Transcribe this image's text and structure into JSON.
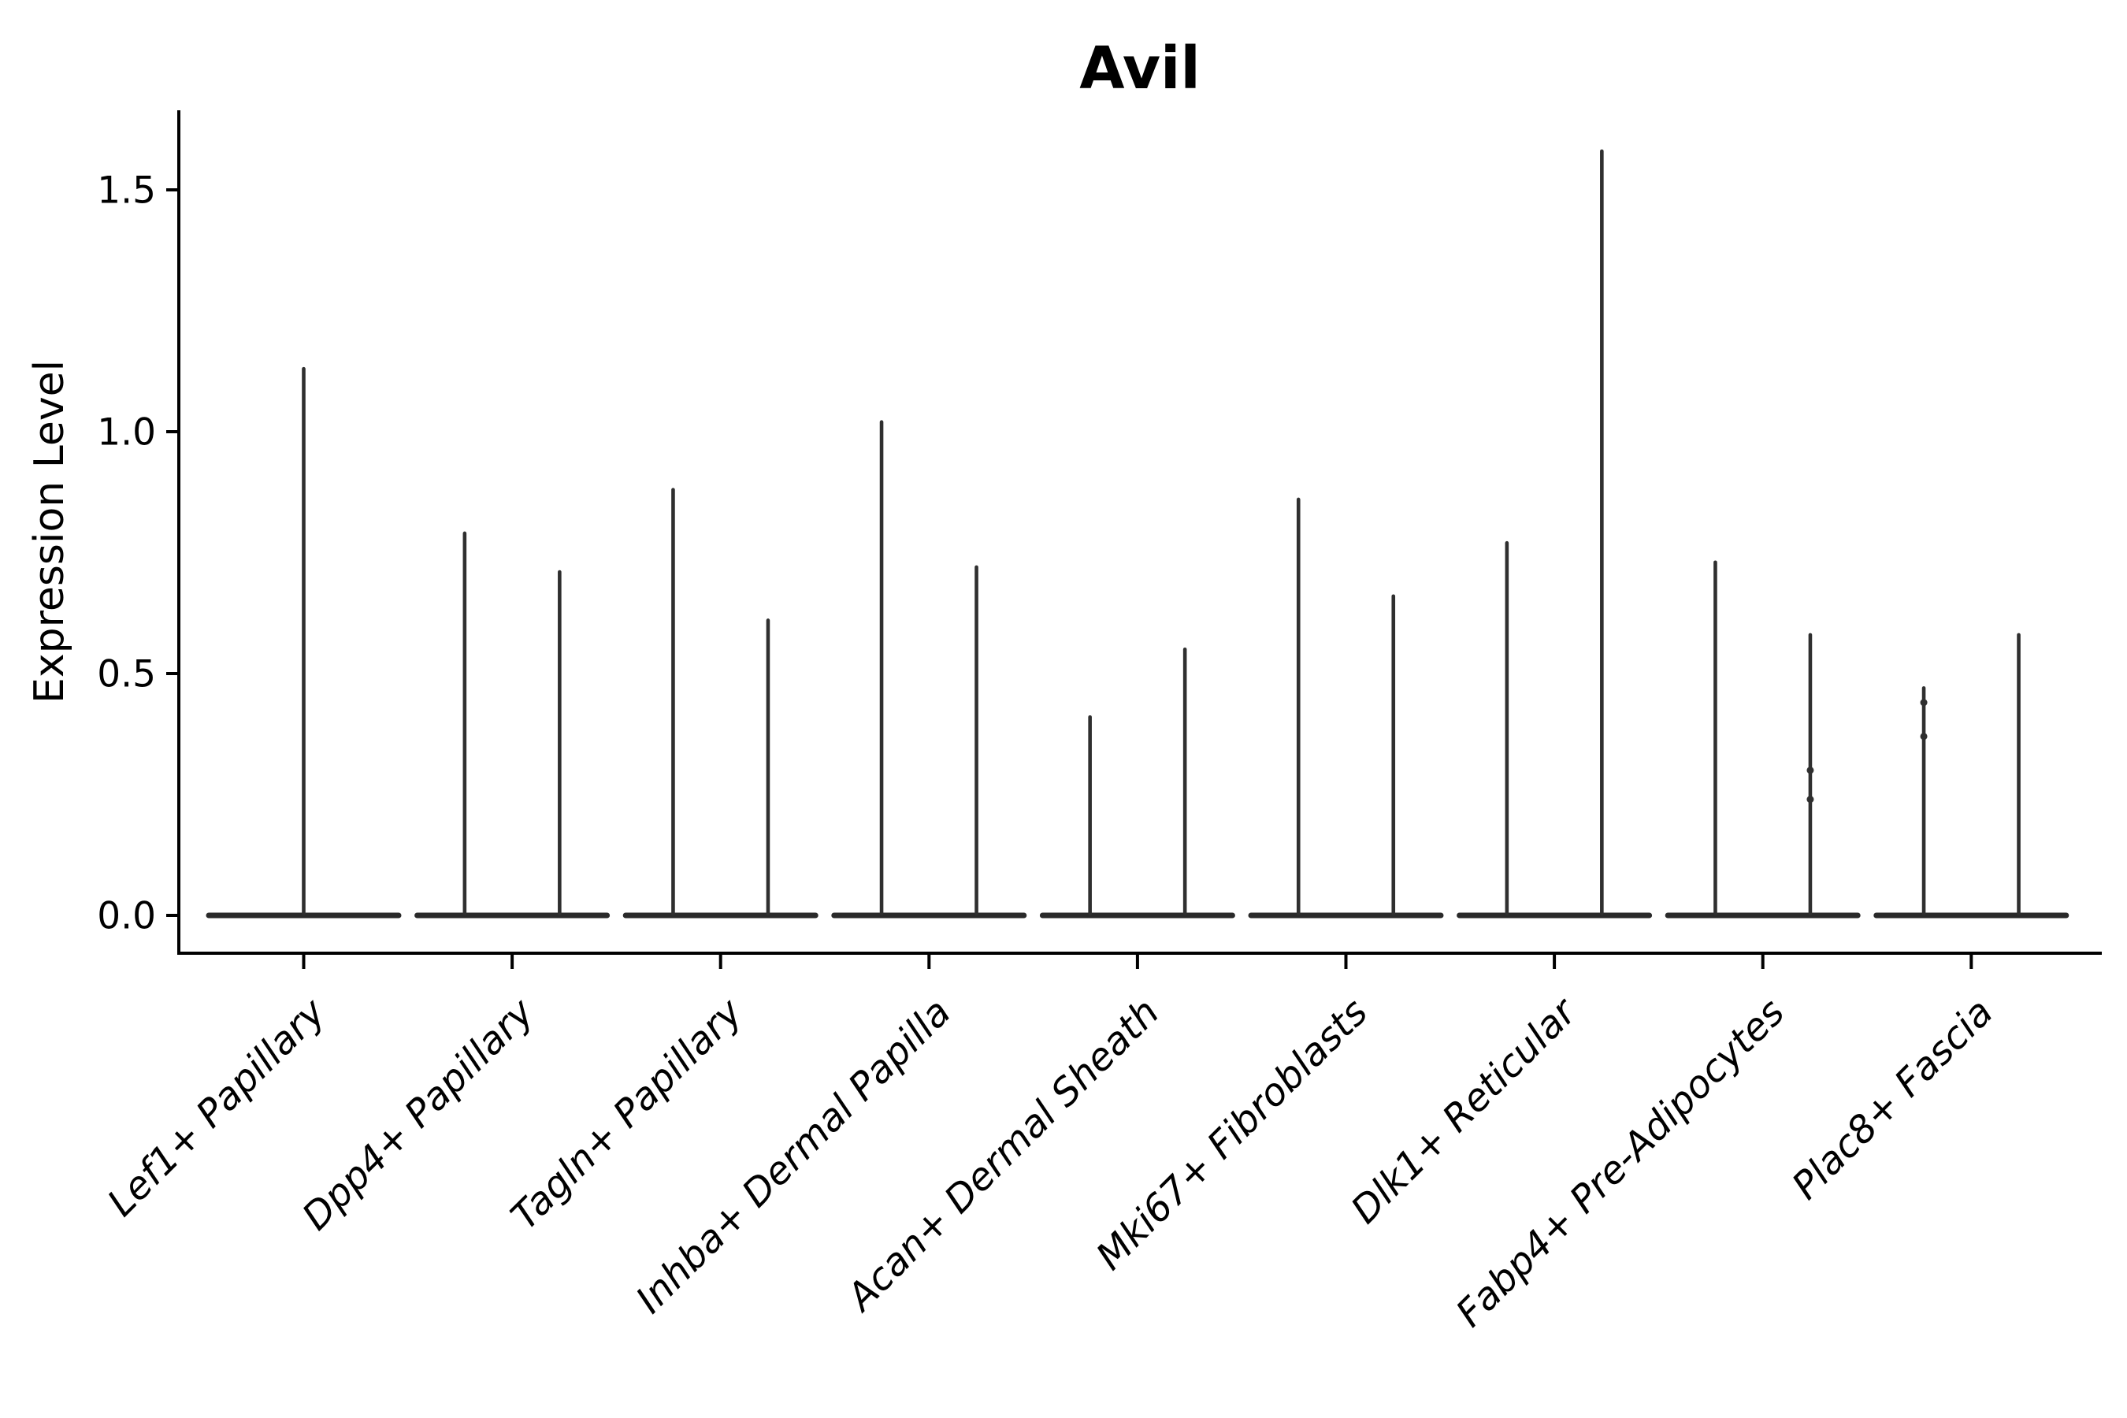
{
  "chart_data": {
    "type": "violin",
    "title": "Avil",
    "xlabel": "",
    "ylabel": "Expression Level",
    "ytick_labels": [
      "0.0",
      "0.5",
      "1.0",
      "1.5"
    ],
    "ytick_values": [
      0.0,
      0.5,
      1.0,
      1.5
    ],
    "ylim": [
      -0.08,
      1.66
    ],
    "grid": false,
    "legend": "none",
    "background_color": "#ffffff",
    "axis_color": "#000000",
    "violin_stroke_color": "#2a2a2a",
    "categories": [
      "Lef1+ Papillary",
      "Dpp4+ Papillary",
      "Tagln+ Papillary",
      "Inhba+ Dermal Papilla",
      "Acan+ Dermal Sheath",
      "Mki67+ Fibroblasts",
      "Dlk1+ Reticular",
      "Fabp4+ Pre-Adipocytes",
      "Plac8+ Fascia"
    ],
    "violins": [
      {
        "category": "Lef1+ Papillary",
        "max_values": [
          1.13
        ],
        "bumps": [
          []
        ]
      },
      {
        "category": "Dpp4+ Papillary",
        "max_values": [
          0.79,
          0.71
        ],
        "bumps": [
          [],
          []
        ]
      },
      {
        "category": "Tagln+ Papillary",
        "max_values": [
          0.88,
          0.61
        ],
        "bumps": [
          [],
          []
        ]
      },
      {
        "category": "Inhba+ Dermal Papilla",
        "max_values": [
          1.02,
          0.72
        ],
        "bumps": [
          [],
          []
        ]
      },
      {
        "category": "Acan+ Dermal Sheath",
        "max_values": [
          0.41,
          0.55
        ],
        "bumps": [
          [],
          []
        ]
      },
      {
        "category": "Mki67+ Fibroblasts",
        "max_values": [
          0.86,
          0.66
        ],
        "bumps": [
          [],
          []
        ]
      },
      {
        "category": "Dlk1+ Reticular",
        "max_values": [
          0.77,
          1.58
        ],
        "bumps": [
          [],
          []
        ]
      },
      {
        "category": "Fabp4+ Pre-Adipocytes",
        "max_values": [
          0.73,
          0.58
        ],
        "bumps": [
          [],
          [
            0.3,
            0.24
          ]
        ]
      },
      {
        "category": "Plac8+ Fascia",
        "max_values": [
          0.47,
          0.58
        ],
        "bumps": [
          [
            0.44,
            0.37
          ],
          []
        ]
      }
    ]
  }
}
